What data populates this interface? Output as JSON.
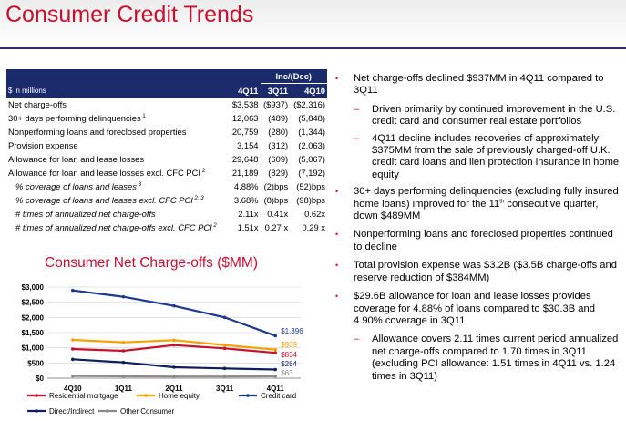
{
  "title": "Consumer Credit Trends",
  "table": {
    "header_group": "Inc/(Dec)",
    "header_label": "$ in millions",
    "col_4q11": "4Q11",
    "col_3q11": "3Q11",
    "col_4q10": "4Q10",
    "rows": [
      {
        "label": "Net charge-offs",
        "sup": "",
        "c1": "$3,538",
        "c2": "($937)",
        "c3": "($2,316)"
      },
      {
        "label": "30+ days performing delinquencies",
        "sup": "1",
        "c1": "12,063",
        "c2": "(489)",
        "c3": "(5,848)"
      },
      {
        "label": "Nonperforming loans and foreclosed properties",
        "sup": "",
        "c1": "20,759",
        "c2": "(280)",
        "c3": "(1,344)"
      },
      {
        "label": "Provision expense",
        "sup": "",
        "c1": "3,154",
        "c2": "(312)",
        "c3": "(2,063)"
      },
      {
        "label": "Allowance for loan and lease losses",
        "sup": "",
        "c1": "29,648",
        "c2": "(609)",
        "c3": "(5,067)"
      },
      {
        "label": "Allowance for loan and lease losses excl. CFC PCI",
        "sup": "2",
        "c1": "21,189",
        "c2": "(829)",
        "c3": "(7,192)"
      },
      {
        "label": "% coverage of loans and leases",
        "sup": "3",
        "c1": "4.88%",
        "c2": "(2)bps",
        "c3": "(52)bps"
      },
      {
        "label": "% coverage of loans and leases excl. CFC PCI",
        "sup": "2, 3",
        "c1": "3.68%",
        "c2": "(8)bps",
        "c3": "(98)bps"
      },
      {
        "label": "# times of annualized net charge-offs",
        "sup": "",
        "c1": "2.11x",
        "c2": "0.41x",
        "c3": "0.62x"
      },
      {
        "label": "# times of annualized net charge-offs excl. CFC PCI",
        "sup": "2",
        "c1": "1.51x",
        "c2": "0.27 x",
        "c3": "0.29 x"
      }
    ]
  },
  "chart_title": "Consumer Net Charge-offs ($MM)",
  "chart_data": {
    "type": "line",
    "categories": [
      "4Q10",
      "1Q11",
      "2Q11",
      "3Q11",
      "4Q11"
    ],
    "ylim": [
      0,
      3000
    ],
    "yticks": [
      "$0",
      "$500",
      "$1,000",
      "$1,500",
      "$2,000",
      "$2,500",
      "$3,000"
    ],
    "series": [
      {
        "name": "Residential mortgage",
        "color": "#c8102e",
        "values": [
          960,
          900,
          1090,
          980,
          834
        ],
        "end_label": "$834"
      },
      {
        "name": "Home equity",
        "color": "#f5a000",
        "values": [
          1260,
          1180,
          1250,
          1090,
          939
        ],
        "end_label": "$939"
      },
      {
        "name": "Credit card",
        "color": "#1b3a8c",
        "values": [
          2890,
          2680,
          2380,
          2000,
          1396
        ],
        "end_label": "$1,396"
      },
      {
        "name": "Direct/Indirect",
        "color": "#0d1f5c",
        "values": [
          620,
          520,
          360,
          320,
          284
        ],
        "end_label": "$284"
      },
      {
        "name": "Other Consumer",
        "color": "#8c8c8c",
        "values": [
          70,
          60,
          55,
          55,
          63
        ],
        "end_label": "$63"
      }
    ],
    "legend": "bottom"
  },
  "bullets": [
    {
      "text": "Net charge-offs declined $937MM in 4Q11 compared to 3Q11",
      "subs": [
        "Driven primarily by continued improvement in the U.S. credit card and consumer real estate portfolios",
        "4Q11 decline includes recoveries of approximately $375MM from the sale of previously charged-off U.K. credit card loans and lien protection insurance in home equity"
      ]
    },
    {
      "text": "30+ days performing delinquencies (excluding fully insured home loans) improved for the 11th consecutive quarter, down $489MM",
      "subs": []
    },
    {
      "text": "Nonperforming loans and foreclosed properties continued to decline",
      "subs": []
    },
    {
      "text": "Total provision expense was $3.2B ($3.5B charge-offs and reserve reduction of $384MM)",
      "subs": []
    },
    {
      "text": "$29.6B allowance for loan and lease losses provides coverage for 4.88% of loans compared to $30.3B and 4.90% coverage in 3Q11",
      "subs": [
        "Allowance covers 2.11 times current period annualized net charge-offs compared to 1.70 times in 3Q11 (excluding PCI allowance: 1.51 times in 4Q11 vs. 1.24 times in 3Q11)"
      ]
    }
  ]
}
